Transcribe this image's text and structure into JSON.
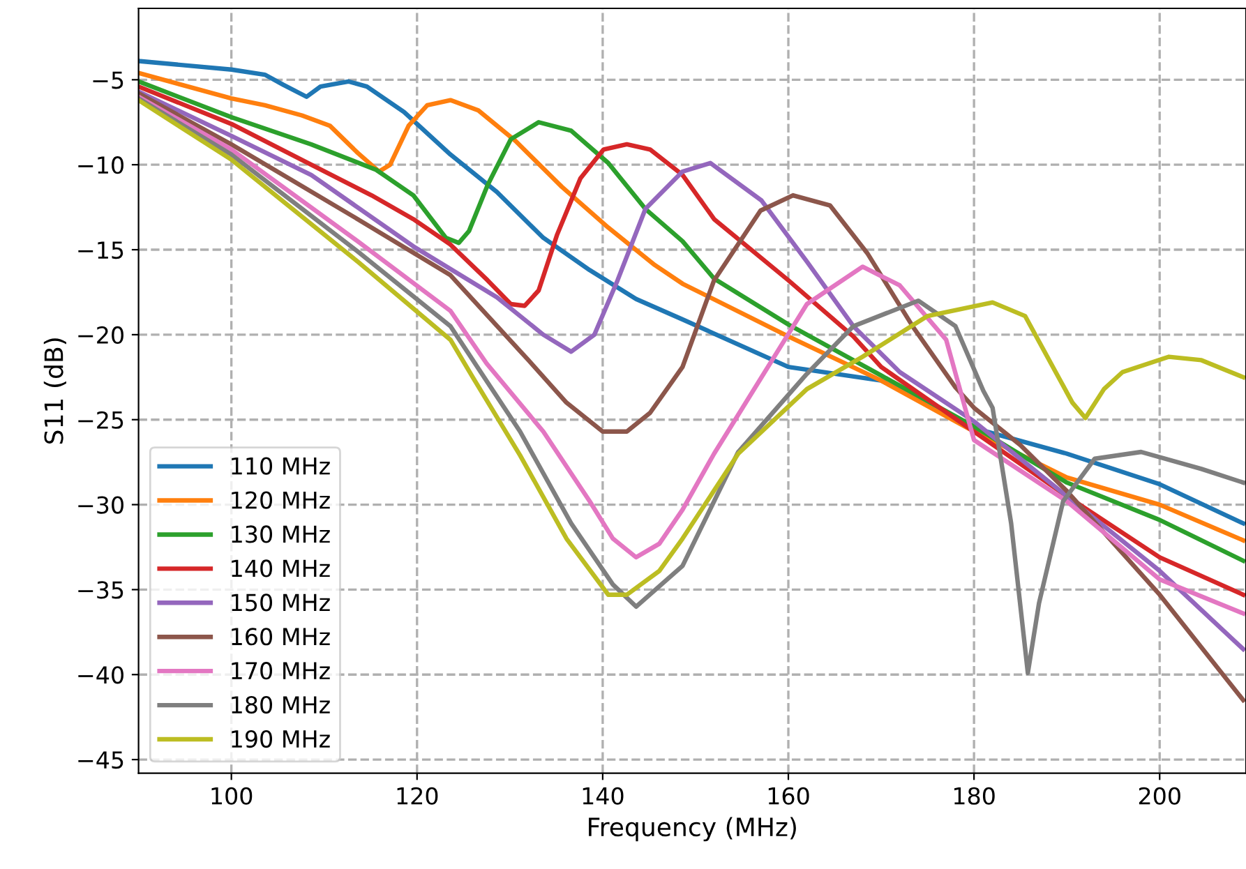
{
  "chart_data": {
    "type": "line",
    "xlabel": "Frequency (MHz)",
    "ylabel": "S11 (dB)",
    "xlim": [
      90,
      209.3
    ],
    "ylim": [
      -45.8,
      -0.8
    ],
    "xticks": [
      100,
      120,
      140,
      160,
      180,
      200
    ],
    "yticks": [
      {
        "value": -5,
        "label": "−5"
      },
      {
        "value": -10,
        "label": "−10"
      },
      {
        "value": -15,
        "label": "−15"
      },
      {
        "value": -20,
        "label": "−20"
      },
      {
        "value": -25,
        "label": "−25"
      },
      {
        "value": -30,
        "label": "−30"
      },
      {
        "value": -35,
        "label": "−35"
      },
      {
        "value": -40,
        "label": "−40"
      },
      {
        "value": -45,
        "label": "−45"
      }
    ],
    "grid": true,
    "legend": "bottom left",
    "marker": "none",
    "line_style": "solid",
    "series": [
      {
        "name": "110 MHz",
        "color": "#1f77b4",
        "x": [
          90,
          100,
          103.6,
          105.6,
          108.1,
          109.6,
          112.6,
          114.6,
          118.6,
          123.6,
          128.6,
          133.6,
          138.6,
          143.6,
          148.6,
          160,
          170,
          180,
          190,
          200,
          209
        ],
        "values": [
          -3.9,
          -4.4,
          -4.7,
          -5.3,
          -6.0,
          -5.4,
          -5.1,
          -5.4,
          -6.9,
          -9.4,
          -11.6,
          -14.3,
          -16.2,
          -17.9,
          -19.1,
          -21.9,
          -22.7,
          -25.5,
          -27,
          -28.8,
          -31.1
        ]
      },
      {
        "name": "120 MHz",
        "color": "#ff7f0e",
        "x": [
          90,
          100,
          103.6,
          107.6,
          110.6,
          113.6,
          115.9,
          117.1,
          119.1,
          121.1,
          123.6,
          126.6,
          130.6,
          135.6,
          140.6,
          145.6,
          148.6,
          160,
          170,
          180,
          190,
          200,
          209
        ],
        "values": [
          -4.6,
          -6.1,
          -6.5,
          -7.1,
          -7.7,
          -9.3,
          -10.4,
          -10.0,
          -7.7,
          -6.5,
          -6.2,
          -6.8,
          -8.6,
          -11.3,
          -13.7,
          -15.9,
          -17.0,
          -20.1,
          -22.7,
          -25.7,
          -28.4,
          -30,
          -32.1
        ]
      },
      {
        "name": "130 MHz",
        "color": "#2ca02c",
        "x": [
          90,
          100,
          108.6,
          115.6,
          119.6,
          123.1,
          124.5,
          125.6,
          127.6,
          130.1,
          133.1,
          136.6,
          140.6,
          144.6,
          148.6,
          152,
          160,
          170,
          180,
          190,
          200,
          209
        ],
        "values": [
          -5.1,
          -7.2,
          -8.8,
          -10.3,
          -11.8,
          -14.3,
          -14.6,
          -13.9,
          -11.2,
          -8.5,
          -7.5,
          -8.0,
          -9.9,
          -12.6,
          -14.5,
          -16.7,
          -19.4,
          -22.4,
          -25.4,
          -28.7,
          -30.9,
          -33.3
        ]
      },
      {
        "name": "140 MHz",
        "color": "#d62728",
        "x": [
          90,
          100,
          108.6,
          115.1,
          119.6,
          123.6,
          127.6,
          130.1,
          131.6,
          133.1,
          135.1,
          137.6,
          140.1,
          142.6,
          145.1,
          148.6,
          152,
          160,
          167,
          170,
          180,
          190,
          200,
          209
        ],
        "values": [
          -5.4,
          -7.6,
          -10,
          -11.8,
          -13.2,
          -14.7,
          -16.8,
          -18.2,
          -18.3,
          -17.4,
          -14.1,
          -10.8,
          -9.1,
          -8.8,
          -9.1,
          -10.6,
          -13.2,
          -16.8,
          -20.1,
          -21.9,
          -25.7,
          -29.5,
          -33.1,
          -35.3
        ]
      },
      {
        "name": "150 MHz",
        "color": "#9467bd",
        "x": [
          90,
          100,
          108.6,
          119.6,
          128.6,
          133.6,
          136.6,
          139.1,
          141.6,
          144.6,
          148.6,
          151.6,
          157.1,
          162,
          167,
          172,
          180,
          190,
          200,
          209
        ],
        "values": [
          -5.7,
          -8.3,
          -10.6,
          -14.8,
          -17.8,
          -20,
          -21,
          -20,
          -16.8,
          -12.6,
          -10.4,
          -9.9,
          -12.1,
          -15.7,
          -19.5,
          -22.2,
          -25.1,
          -29.5,
          -33.9,
          -38.5
        ]
      },
      {
        "name": "160 MHz",
        "color": "#8c564b",
        "x": [
          90,
          100,
          113.6,
          123.6,
          132,
          136.1,
          140,
          142.6,
          145.1,
          148.6,
          152,
          157,
          160.5,
          164.5,
          168.5,
          173.5,
          178,
          180,
          185,
          190,
          200,
          209
        ],
        "values": [
          -5.8,
          -8.8,
          -13.2,
          -16.5,
          -21.5,
          -24,
          -25.7,
          -25.7,
          -24.6,
          -21.9,
          -16.8,
          -12.7,
          -11.8,
          -12.4,
          -15.2,
          -19.6,
          -23.1,
          -24.3,
          -26.5,
          -29.2,
          -35.3,
          -41.5
        ]
      },
      {
        "name": "170 MHz",
        "color": "#e377c2",
        "x": [
          90,
          100,
          113.6,
          123.6,
          127.5,
          133.6,
          138.6,
          141.1,
          143.6,
          146.1,
          148.6,
          152,
          157,
          162,
          168,
          172,
          177,
          180,
          190,
          200,
          209
        ],
        "values": [
          -6,
          -9.1,
          -14.5,
          -18.6,
          -21.7,
          -25.7,
          -29.8,
          -32,
          -33.1,
          -32.3,
          -30.3,
          -27,
          -22.6,
          -18.2,
          -16,
          -17.1,
          -20.3,
          -26.2,
          -29.8,
          -34.4,
          -36.4
        ]
      },
      {
        "name": "180 MHz",
        "color": "#7f7f7f",
        "x": [
          90,
          100,
          113.6,
          123.6,
          126.5,
          131.1,
          136.6,
          141.1,
          143.6,
          148.6,
          154.6,
          162,
          167,
          174,
          178,
          181,
          182,
          184,
          185.8,
          187,
          189.6,
          193,
          198,
          204.5,
          209
        ],
        "values": [
          -6.1,
          -9.4,
          -15.1,
          -19.5,
          -21.9,
          -25.7,
          -31.1,
          -34.7,
          -36,
          -33.6,
          -26.9,
          -22.3,
          -19.5,
          -18,
          -19.5,
          -23.3,
          -24.3,
          -31.1,
          -39.9,
          -35.8,
          -29.8,
          -27.3,
          -26.9,
          -27.9,
          -28.7
        ]
      },
      {
        "name": "190 MHz",
        "color": "#bcbd22",
        "x": [
          90,
          100,
          113.6,
          123.6,
          126,
          131.1,
          136.1,
          140.6,
          142.6,
          146.1,
          148.6,
          154.6,
          162,
          168,
          175,
          182,
          185.5,
          188.5,
          190.6,
          192,
          194,
          196,
          201,
          204.5,
          209
        ],
        "values": [
          -6.2,
          -9.7,
          -15.7,
          -20.3,
          -22.5,
          -27.1,
          -32,
          -35.3,
          -35.3,
          -33.9,
          -32,
          -27,
          -23.2,
          -21.3,
          -18.9,
          -18.1,
          -18.9,
          -21.9,
          -24,
          -24.9,
          -23.2,
          -22.2,
          -21.3,
          -21.5,
          -22.5
        ]
      }
    ]
  }
}
